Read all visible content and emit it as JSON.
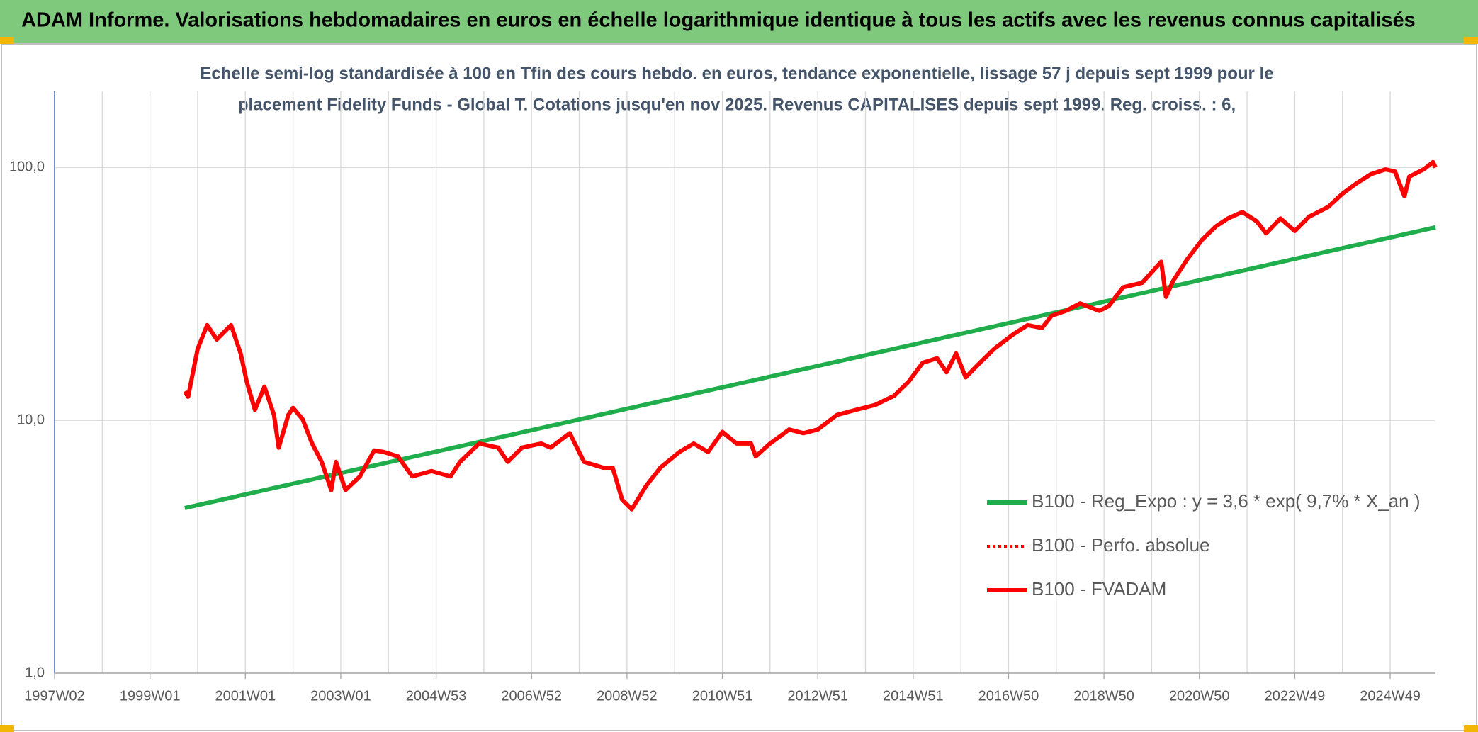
{
  "chart_data": {
    "type": "line",
    "title": "ADAM Informe. Valorisations hebdomadaires en euros en échelle logarithmique identique à tous les actifs avec les revenus connus capitalisés",
    "subtitle": [
      "Echelle semi-log standardisée à 100 en Tfin des cours hebdo. en euros, tendance exponentielle, lissage 57 j depuis sept 1999 pour le",
      "placement Fidelity Funds - Global T. Cotations jusqu'en nov 2025. Revenus CAPITALISES depuis sept 1999. Reg. croiss. : 6,"
    ],
    "log_scale_y": true,
    "grid": true,
    "legend": "right",
    "xlim": [
      1997,
      2025.95
    ],
    "xticks": [
      {
        "value": 1997,
        "label": "1997W02"
      },
      {
        "value": 1999,
        "label": "1999W01"
      },
      {
        "value": 2001,
        "label": "2001W01"
      },
      {
        "value": 2003,
        "label": "2003W01"
      },
      {
        "value": 2005,
        "label": "2004W53"
      },
      {
        "value": 2007,
        "label": "2006W52"
      },
      {
        "value": 2009,
        "label": "2008W52"
      },
      {
        "value": 2011,
        "label": "2010W51"
      },
      {
        "value": 2013,
        "label": "2012W51"
      },
      {
        "value": 2015,
        "label": "2014W51"
      },
      {
        "value": 2017,
        "label": "2016W50"
      },
      {
        "value": 2019,
        "label": "2018W50"
      },
      {
        "value": 2021,
        "label": "2020W50"
      },
      {
        "value": 2023,
        "label": "2022W49"
      },
      {
        "value": 2025,
        "label": "2024W49"
      }
    ],
    "ylim": [
      1,
      200
    ],
    "yticks": [
      {
        "value": 1,
        "label": "1,0"
      },
      {
        "value": 10,
        "label": "10,0"
      },
      {
        "value": 100,
        "label": "100,0"
      }
    ],
    "series": [
      {
        "name": "B100 - Reg_Expo : y = 3,6 * exp( 9,7% *  X_an )",
        "color": "#1fae4b",
        "style": "solid",
        "x": [
          1999.73,
          2025.95
        ],
        "values": [
          4.5,
          58
        ]
      },
      {
        "name": "B100 - Perfo. absolue",
        "color": "#ff0000",
        "style": "dotted",
        "x": [
          1999.73,
          1999.8,
          2000.0,
          2000.2,
          2000.4,
          2000.6,
          2000.7,
          2000.9,
          2001.03,
          2001.2,
          2001.4,
          2001.6,
          2001.7,
          2001.9,
          2002.0,
          2002.2,
          2002.4,
          2002.6,
          2002.8,
          2002.9,
          2003.1,
          2003.4,
          2003.7,
          2003.9,
          2004.2,
          2004.5,
          2004.9,
          2005.3,
          2005.5,
          2005.9,
          2006.3,
          2006.5,
          2006.8,
          2007.2,
          2007.4,
          2007.8,
          2008.1,
          2008.5,
          2008.7,
          2008.9,
          2009.1,
          2009.4,
          2009.7,
          2010.1,
          2010.4,
          2010.7,
          2011.0,
          2011.3,
          2011.6,
          2011.7,
          2012.0,
          2012.4,
          2012.7,
          2013.0,
          2013.4,
          2013.8,
          2014.2,
          2014.6,
          2014.9,
          2015.2,
          2015.5,
          2015.7,
          2015.9,
          2016.1,
          2016.4,
          2016.7,
          2017.1,
          2017.4,
          2017.7,
          2017.9,
          2018.2,
          2018.5,
          2018.9,
          2019.1,
          2019.4,
          2019.8,
          2020.2,
          2020.3,
          2020.45,
          2020.75,
          2021.05,
          2021.35,
          2021.6,
          2021.9,
          2022.2,
          2022.4,
          2022.7,
          2023.0,
          2023.3,
          2023.7,
          2024.0,
          2024.3,
          2024.6,
          2024.9,
          2025.1,
          2025.3,
          2025.4,
          2025.7,
          2025.9,
          2025.95
        ],
        "values": [
          13.0,
          12.4,
          19.2,
          23.8,
          20.9,
          22.8,
          23.8,
          18.4,
          14.2,
          11.0,
          13.6,
          10.5,
          7.8,
          10.5,
          11.2,
          10.1,
          8.1,
          6.85,
          5.3,
          6.85,
          5.3,
          6.0,
          7.6,
          7.5,
          7.2,
          6.0,
          6.3,
          6.0,
          6.85,
          8.1,
          7.8,
          6.85,
          7.8,
          8.1,
          7.8,
          8.9,
          6.85,
          6.5,
          6.5,
          4.85,
          4.45,
          5.5,
          6.5,
          7.5,
          8.1,
          7.5,
          9.0,
          8.1,
          8.1,
          7.2,
          8.1,
          9.2,
          8.9,
          9.2,
          10.5,
          11.0,
          11.5,
          12.5,
          14.2,
          16.9,
          17.6,
          15.5,
          18.4,
          14.8,
          16.9,
          19.2,
          21.9,
          23.8,
          23.2,
          25.9,
          27.1,
          29.0,
          27.1,
          28.3,
          33.6,
          35.0,
          42.4,
          30.8,
          35.6,
          43.5,
          51.6,
          58.6,
          62.9,
          66.7,
          61.3,
          54.9,
          62.9,
          56.1,
          63.9,
          69.8,
          78.8,
          86.7,
          94.2,
          98.3,
          96.5,
          76.9,
          92.0,
          98.3,
          105,
          100
        ]
      },
      {
        "name": "B100 - FVADAM",
        "color": "#ff0000",
        "style": "solid",
        "x": [
          1999.73,
          1999.8,
          2000.0,
          2000.2,
          2000.4,
          2000.6,
          2000.7,
          2000.9,
          2001.03,
          2001.2,
          2001.4,
          2001.6,
          2001.7,
          2001.9,
          2002.0,
          2002.2,
          2002.4,
          2002.6,
          2002.8,
          2002.9,
          2003.1,
          2003.4,
          2003.7,
          2003.9,
          2004.2,
          2004.5,
          2004.9,
          2005.3,
          2005.5,
          2005.9,
          2006.3,
          2006.5,
          2006.8,
          2007.2,
          2007.4,
          2007.8,
          2008.1,
          2008.5,
          2008.7,
          2008.9,
          2009.1,
          2009.4,
          2009.7,
          2010.1,
          2010.4,
          2010.7,
          2011.0,
          2011.3,
          2011.6,
          2011.7,
          2012.0,
          2012.4,
          2012.7,
          2013.0,
          2013.4,
          2013.8,
          2014.2,
          2014.6,
          2014.9,
          2015.2,
          2015.5,
          2015.7,
          2015.9,
          2016.1,
          2016.4,
          2016.7,
          2017.1,
          2017.4,
          2017.7,
          2017.9,
          2018.2,
          2018.5,
          2018.9,
          2019.1,
          2019.4,
          2019.8,
          2020.2,
          2020.3,
          2020.45,
          2020.75,
          2021.05,
          2021.35,
          2021.6,
          2021.9,
          2022.2,
          2022.4,
          2022.7,
          2023.0,
          2023.3,
          2023.7,
          2024.0,
          2024.3,
          2024.6,
          2024.9,
          2025.1,
          2025.3,
          2025.4,
          2025.7,
          2025.9,
          2025.95
        ],
        "values": [
          13.0,
          12.4,
          19.2,
          23.8,
          20.9,
          22.8,
          23.8,
          18.4,
          14.2,
          11.0,
          13.6,
          10.5,
          7.8,
          10.5,
          11.2,
          10.1,
          8.1,
          6.85,
          5.3,
          6.85,
          5.3,
          6.0,
          7.6,
          7.5,
          7.2,
          6.0,
          6.3,
          6.0,
          6.85,
          8.1,
          7.8,
          6.85,
          7.8,
          8.1,
          7.8,
          8.9,
          6.85,
          6.5,
          6.5,
          4.85,
          4.45,
          5.5,
          6.5,
          7.5,
          8.1,
          7.5,
          9.0,
          8.1,
          8.1,
          7.2,
          8.1,
          9.2,
          8.9,
          9.2,
          10.5,
          11.0,
          11.5,
          12.5,
          14.2,
          16.9,
          17.6,
          15.5,
          18.4,
          14.8,
          16.9,
          19.2,
          21.9,
          23.8,
          23.2,
          25.9,
          27.1,
          29.0,
          27.1,
          28.3,
          33.6,
          35.0,
          42.4,
          30.8,
          35.6,
          43.5,
          51.6,
          58.6,
          62.9,
          66.7,
          61.3,
          54.9,
          62.9,
          56.1,
          63.9,
          69.8,
          78.8,
          86.7,
          94.2,
          98.3,
          96.5,
          76.9,
          92.0,
          98.3,
          105,
          100
        ]
      }
    ]
  }
}
